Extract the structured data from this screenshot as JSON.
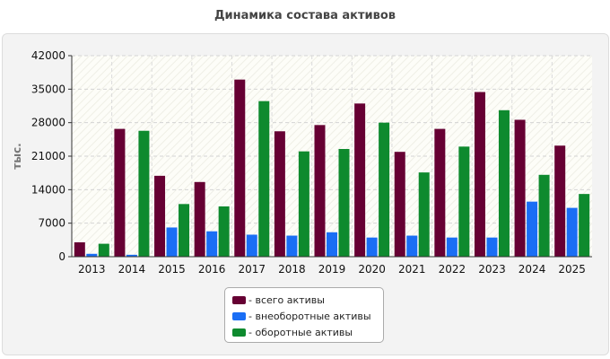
{
  "chart_data": {
    "type": "bar",
    "title": "Динамика состава активов",
    "ylabel": "тыс.",
    "xlabel": "",
    "ylim": [
      0,
      42000
    ],
    "yticks": [
      0,
      7000,
      14000,
      21000,
      28000,
      35000,
      42000
    ],
    "grid": true,
    "legend_position": "bottom",
    "categories": [
      "2013",
      "2014",
      "2015",
      "2016",
      "2017",
      "2018",
      "2019",
      "2020",
      "2021",
      "2022",
      "2023",
      "2024",
      "2025"
    ],
    "series": [
      {
        "name": "- всего активы",
        "color": "#660033",
        "values": [
          3000,
          26700,
          16900,
          15600,
          37000,
          26200,
          27500,
          32000,
          21900,
          26700,
          34400,
          28600,
          23200
        ]
      },
      {
        "name": "- внеоборотные активы",
        "color": "#1a6ef5",
        "values": [
          600,
          400,
          6100,
          5300,
          4600,
          4400,
          5100,
          4000,
          4400,
          4000,
          4000,
          11500,
          10200
        ]
      },
      {
        "name": "- оборотные активы",
        "color": "#0e8a2e",
        "values": [
          2700,
          26300,
          11000,
          10500,
          32500,
          22000,
          22500,
          28000,
          17600,
          23000,
          30600,
          17100,
          13100
        ]
      }
    ]
  }
}
